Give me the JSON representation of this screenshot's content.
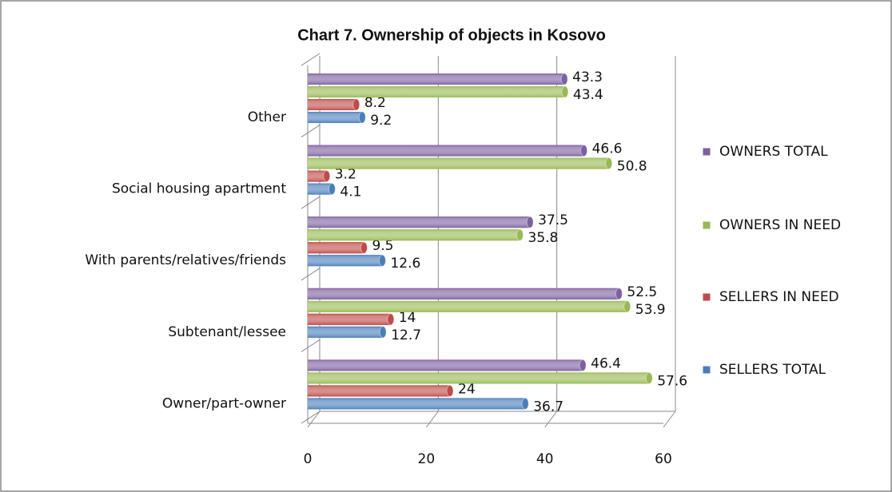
{
  "chart_data": {
    "type": "bar",
    "orientation": "horizontal",
    "title": "Chart 7. Ownership of objects in Kosovo",
    "categories": [
      "Owner/part-owner",
      "Subtenant/lessee",
      "With parents/relatives/friends",
      "Social housing apartment",
      "Other"
    ],
    "series": [
      {
        "name": "SELLERS TOTAL",
        "color": "#4a7ebb",
        "values": [
          36.7,
          12.7,
          12.6,
          4.1,
          9.2
        ]
      },
      {
        "name": "SELLERS IN NEED",
        "color": "#be4b48",
        "values": [
          24,
          14,
          9.5,
          3.2,
          8.2
        ]
      },
      {
        "name": "OWNERS IN NEED",
        "color": "#98b954",
        "values": [
          57.6,
          53.9,
          35.8,
          50.8,
          43.4
        ]
      },
      {
        "name": "OWNERS TOTAL",
        "color": "#7d60a0",
        "values": [
          46.4,
          52.5,
          37.5,
          46.6,
          43.3
        ]
      }
    ],
    "xlim": [
      0,
      60
    ],
    "xticks": [
      0,
      20,
      40,
      60
    ],
    "grid": true,
    "legend": "right"
  }
}
